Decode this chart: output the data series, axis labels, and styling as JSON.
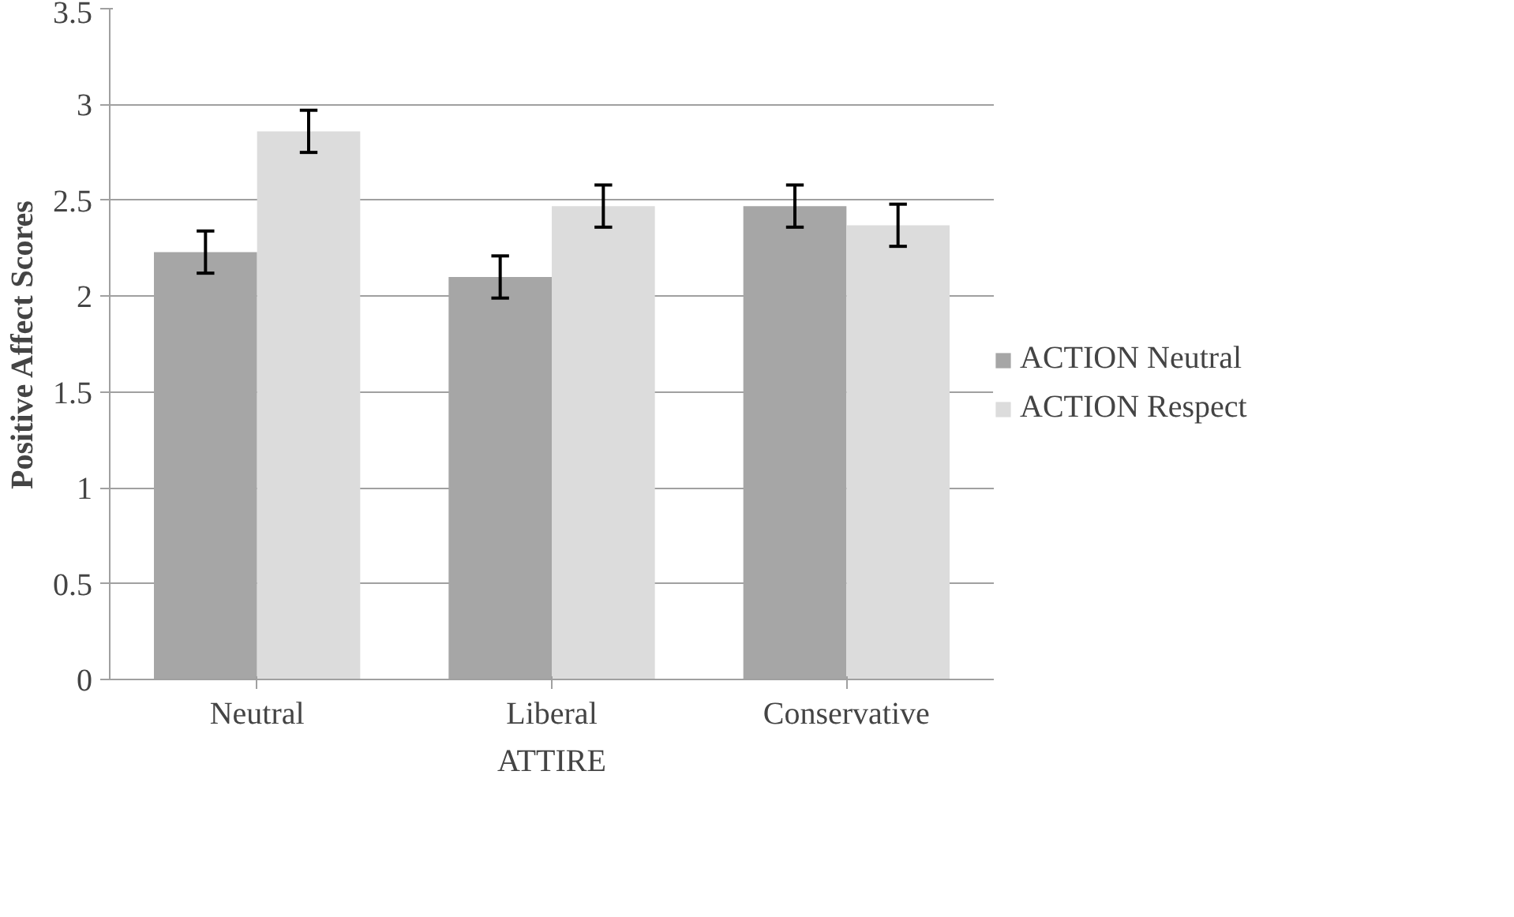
{
  "chart_data": {
    "type": "bar",
    "xlabel": "ATTIRE",
    "ylabel": "Positive Affect Scores",
    "categories": [
      "Neutral",
      "Liberal",
      "Conservative"
    ],
    "series": [
      {
        "name": "ACTION Neutral",
        "color": "#a6a6a6",
        "values": [
          2.23,
          2.1,
          2.47
        ],
        "errors": [
          0.11,
          0.11,
          0.11
        ]
      },
      {
        "name": "ACTION Respect",
        "color": "#dcdcdc",
        "values": [
          2.86,
          2.47,
          2.37
        ],
        "errors": [
          0.11,
          0.11,
          0.11
        ]
      }
    ],
    "ylim": [
      0,
      3.5
    ],
    "yticks": [
      0,
      0.5,
      1,
      1.5,
      2,
      2.5,
      3,
      3.5
    ],
    "grid": "y",
    "legend": "right"
  }
}
